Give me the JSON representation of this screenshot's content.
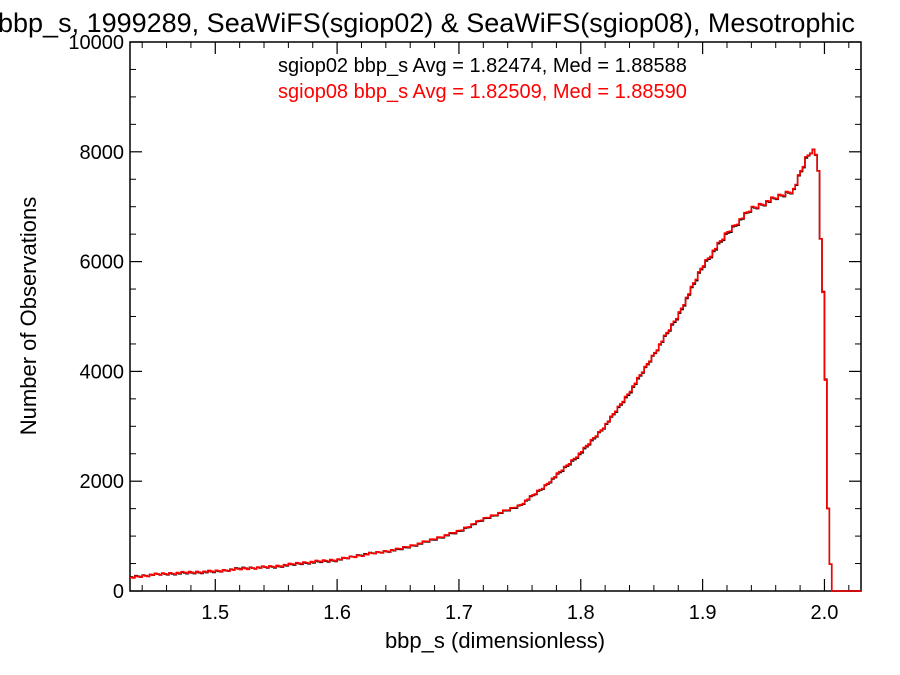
{
  "chart_data": {
    "type": "line",
    "title": "bbp_s, 1999289, SeaWiFS(sgiop02) & SeaWiFS(sgiop08), Mesotrophic",
    "xlabel": "bbp_s (dimensionless)",
    "ylabel": "Number of Observations",
    "xlim": [
      1.43,
      2.03
    ],
    "ylim": [
      0,
      10000
    ],
    "x_ticks": [
      1.5,
      1.6,
      1.7,
      1.8,
      1.9,
      2.0
    ],
    "x_tick_labels": [
      "1.5",
      "1.6",
      "1.7",
      "1.8",
      "1.9",
      "2.0"
    ],
    "y_ticks": [
      0,
      2000,
      4000,
      6000,
      8000,
      10000
    ],
    "y_tick_labels": [
      "0",
      "2000",
      "4000",
      "6000",
      "8000",
      "10000"
    ],
    "grid": false,
    "legend": [
      {
        "text": "sgiop02 bbp_s Avg = 1.82474, Med = 1.88588",
        "color": "#000000"
      },
      {
        "text": "sgiop08 bbp_s Avg = 1.82509, Med = 1.88590",
        "color": "#ff0000"
      }
    ],
    "x": [
      1.43,
      1.45,
      1.47,
      1.5,
      1.52,
      1.55,
      1.57,
      1.6,
      1.62,
      1.65,
      1.67,
      1.7,
      1.72,
      1.75,
      1.77,
      1.8,
      1.82,
      1.84,
      1.86,
      1.88,
      1.9,
      1.92,
      1.94,
      1.96,
      1.975,
      1.985,
      1.99,
      1.993,
      1.995,
      1.997,
      2.0,
      2.003,
      2.006,
      2.03
    ],
    "series": [
      {
        "name": "sgiop02",
        "color": "#000000",
        "values": [
          250,
          300,
          320,
          350,
          410,
          440,
          500,
          560,
          660,
          750,
          870,
          1080,
          1300,
          1550,
          1890,
          2500,
          3000,
          3600,
          4300,
          5000,
          5900,
          6500,
          6950,
          7150,
          7300,
          7850,
          8050,
          7950,
          7700,
          6400,
          5000,
          1500,
          0,
          0
        ]
      },
      {
        "name": "sgiop08",
        "color": "#ff0000",
        "values": [
          240,
          300,
          330,
          360,
          400,
          450,
          510,
          570,
          650,
          760,
          880,
          1090,
          1310,
          1560,
          1900,
          2520,
          3010,
          3620,
          4310,
          5020,
          5920,
          6520,
          6960,
          7160,
          7310,
          7870,
          8040,
          7960,
          7700,
          6400,
          4980,
          1500,
          0,
          0
        ]
      }
    ]
  }
}
